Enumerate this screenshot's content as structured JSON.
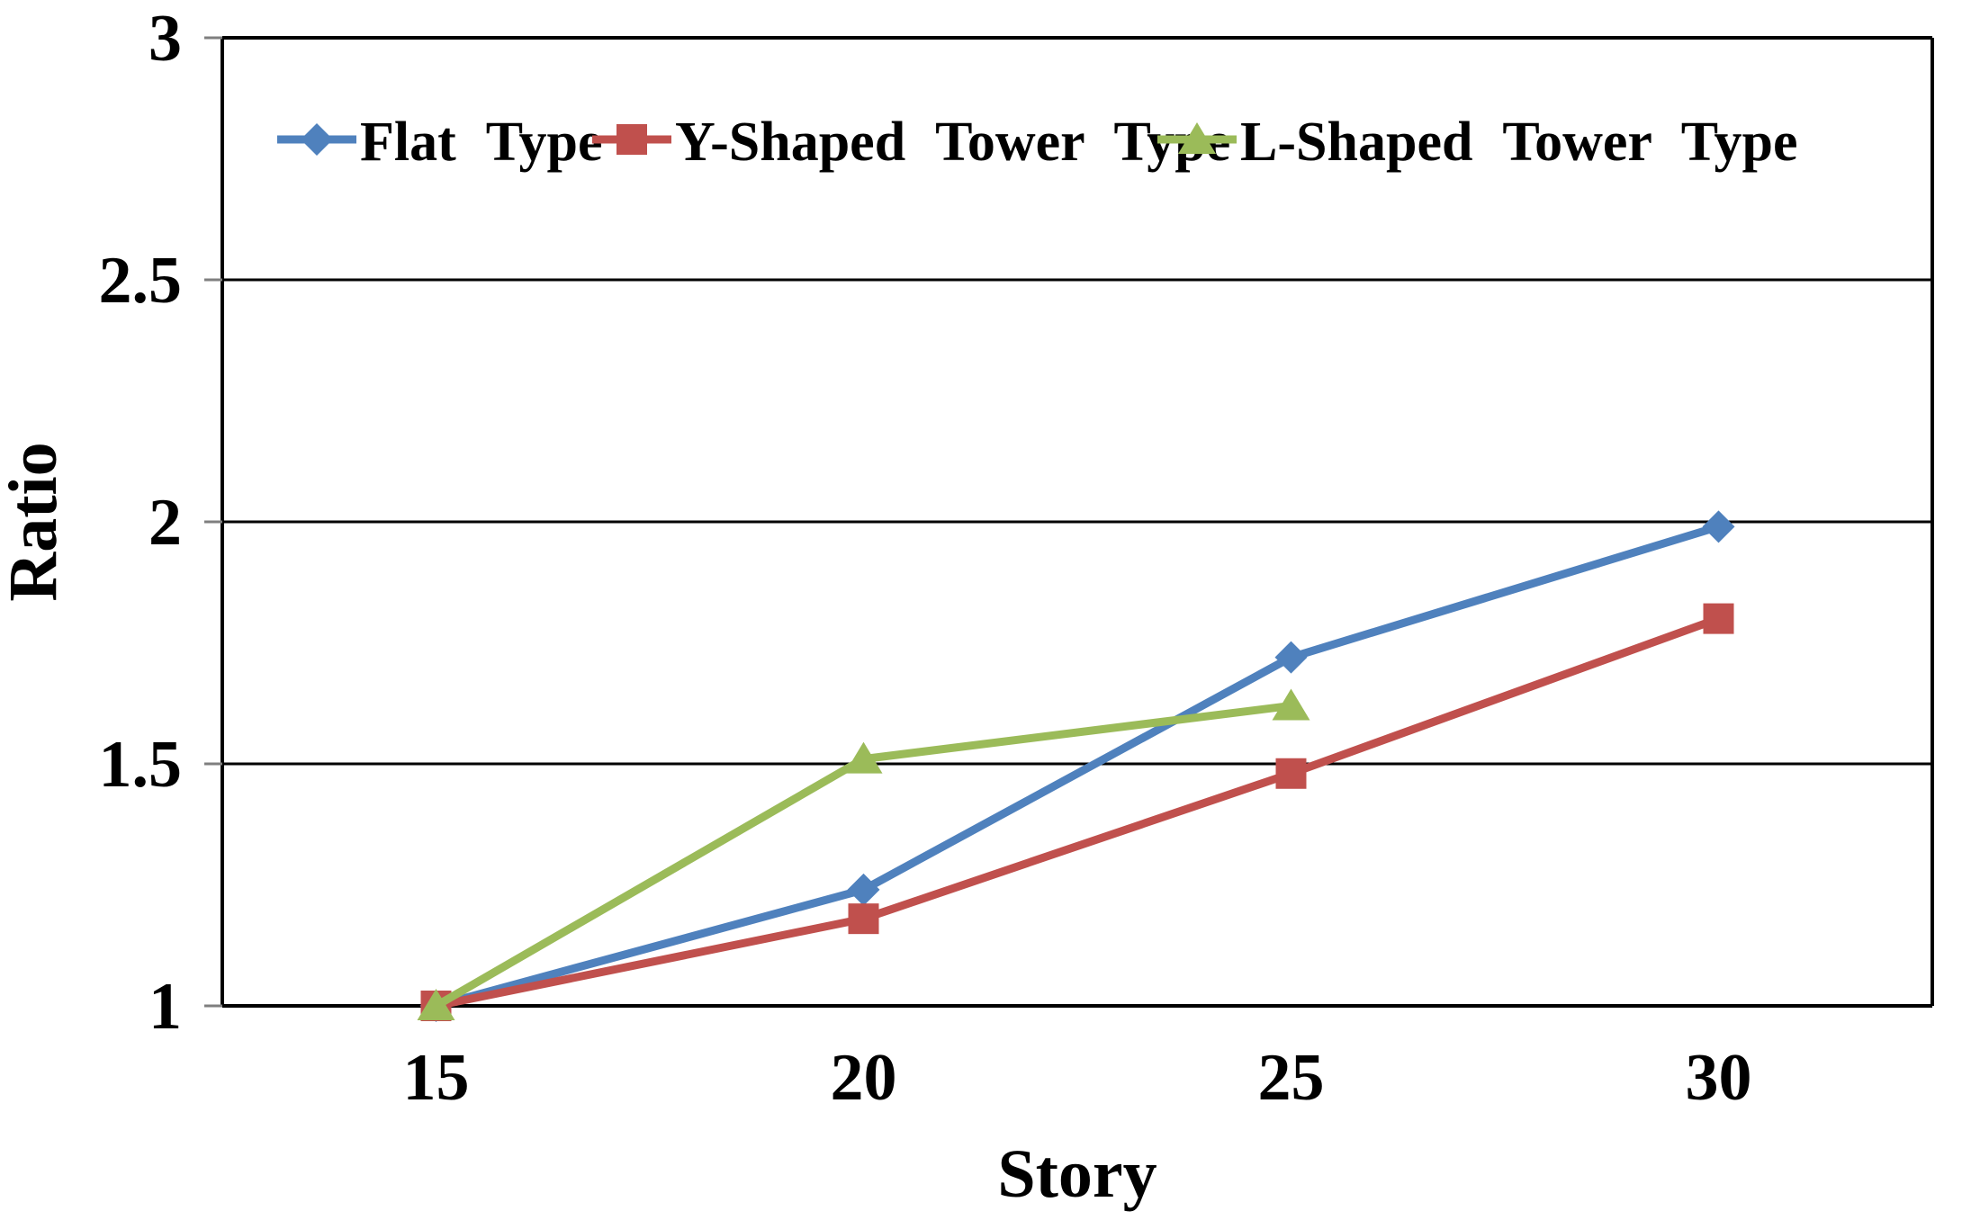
{
  "chart_data": {
    "type": "line",
    "title": "",
    "xlabel": "Story",
    "ylabel": "Ratio",
    "categories": [
      "15",
      "20",
      "25",
      "30"
    ],
    "y_ticks": [
      "1",
      "1.5",
      "2",
      "2.5",
      "3"
    ],
    "ylim": [
      1,
      3
    ],
    "grid": "horizontal",
    "grid_color": "#000000",
    "axis_color": "#000000",
    "tick_mark_color": "#7f7f7f",
    "legend_position": "top-inside",
    "series": [
      {
        "name": "Flat Type",
        "color": "#4F81BD",
        "marker": "diamond",
        "values": [
          1.0,
          1.24,
          1.72,
          1.99
        ]
      },
      {
        "name": "Y-Shaped Tower Type",
        "color": "#C0504D",
        "marker": "square",
        "values": [
          1.0,
          1.18,
          1.48,
          1.8
        ]
      },
      {
        "name": "L-Shaped Tower Type",
        "color": "#9BBB59",
        "marker": "triangle",
        "values": [
          1.0,
          1.51,
          1.62
        ]
      }
    ]
  }
}
